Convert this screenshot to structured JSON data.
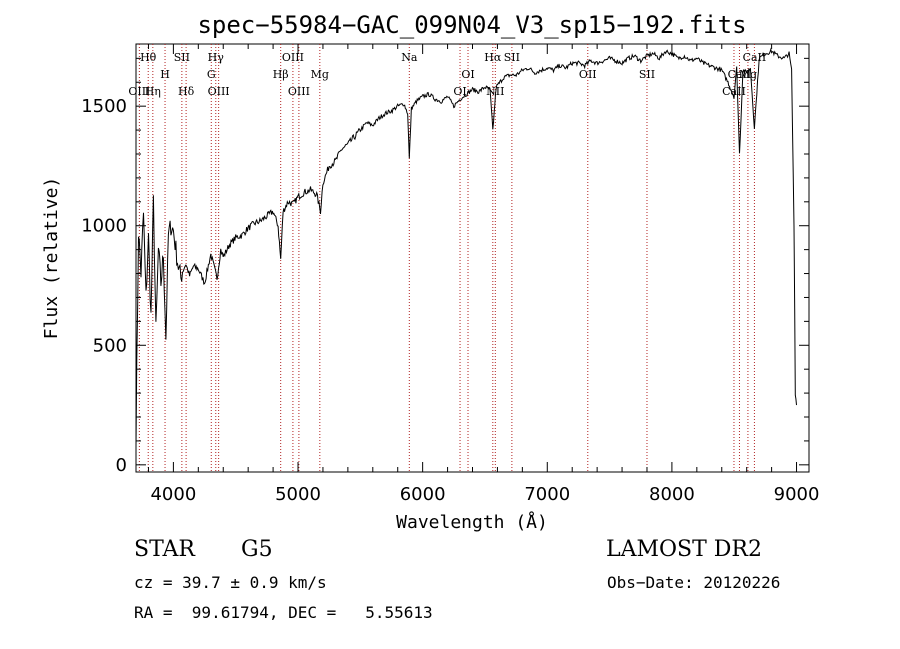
{
  "chart_data": {
    "type": "line",
    "title": "spec−55984−GAC_099N04_V3_sp15−192.fits",
    "xlabel": "Wavelength (Å)",
    "ylabel": "Flux (relative)",
    "xlim": [
      3700,
      9100
    ],
    "ylim": [
      -30,
      1760
    ],
    "xticks": [
      4000,
      5000,
      6000,
      7000,
      8000,
      9000
    ],
    "yticks": [
      0,
      500,
      1000,
      1500
    ],
    "line_color": "#000000",
    "marker_color": "#b22222",
    "series": [
      {
        "x": [
          3700,
          3720,
          3740,
          3760,
          3780,
          3800,
          3820,
          3840,
          3860,
          3880,
          3900,
          3920,
          3940,
          3960,
          3980,
          4000,
          4020,
          4040,
          4060,
          4080,
          4100,
          4130,
          4160,
          4200,
          4250,
          4300,
          4330,
          4350,
          4380,
          4400,
          4450,
          4500,
          4550,
          4600,
          4650,
          4700,
          4750,
          4800,
          4840,
          4861,
          4880,
          4920,
          4960,
          5000,
          5050,
          5100,
          5150,
          5180,
          5200,
          5250,
          5300,
          5350,
          5400,
          5450,
          5500,
          5550,
          5600,
          5650,
          5700,
          5750,
          5800,
          5850,
          5880,
          5893,
          5910,
          5950,
          6000,
          6050,
          6100,
          6150,
          6200,
          6250,
          6300,
          6350,
          6400,
          6450,
          6500,
          6540,
          6563,
          6590,
          6620,
          6650,
          6700,
          6750,
          6800,
          6850,
          6900,
          6950,
          7000,
          7050,
          7100,
          7150,
          7200,
          7250,
          7300,
          7350,
          7400,
          7450,
          7500,
          7550,
          7600,
          7650,
          7700,
          7750,
          7800,
          7850,
          7900,
          7950,
          8000,
          8050,
          8100,
          8150,
          8200,
          8250,
          8300,
          8350,
          8400,
          8450,
          8498,
          8520,
          8542,
          8570,
          8600,
          8630,
          8662,
          8700,
          8750,
          8800,
          8850,
          8900,
          8940,
          8960,
          8980,
          8990,
          9000
        ],
        "y": [
          120,
          980,
          800,
          1050,
          700,
          950,
          620,
          1100,
          560,
          900,
          760,
          880,
          530,
          960,
          1000,
          980,
          900,
          830,
          780,
          830,
          840,
          790,
          830,
          820,
          760,
          880,
          820,
          780,
          900,
          870,
          920,
          950,
          960,
          990,
          1010,
          1020,
          1040,
          1060,
          1000,
          860,
          1060,
          1100,
          1090,
          1120,
          1140,
          1150,
          1130,
          1060,
          1180,
          1250,
          1270,
          1320,
          1340,
          1370,
          1400,
          1430,
          1420,
          1450,
          1470,
          1480,
          1500,
          1510,
          1470,
          1280,
          1490,
          1520,
          1540,
          1550,
          1530,
          1520,
          1540,
          1500,
          1530,
          1550,
          1570,
          1560,
          1580,
          1570,
          1400,
          1580,
          1600,
          1620,
          1630,
          1630,
          1650,
          1660,
          1640,
          1650,
          1660,
          1650,
          1670,
          1660,
          1680,
          1680,
          1670,
          1690,
          1680,
          1690,
          1700,
          1690,
          1680,
          1700,
          1710,
          1690,
          1710,
          1720,
          1700,
          1730,
          1720,
          1700,
          1710,
          1690,
          1700,
          1680,
          1670,
          1660,
          1650,
          1600,
          1540,
          1660,
          1300,
          1650,
          1640,
          1660,
          1410,
          1700,
          1720,
          1730,
          1710,
          1700,
          1720,
          1650,
          1000,
          300,
          250
        ]
      }
    ],
    "lines": [
      {
        "label": "Hθ",
        "wl": 3798,
        "row": 1
      },
      {
        "label": "OIII",
        "wl": 3727,
        "row": 3
      },
      {
        "label": "Hη",
        "wl": 3835,
        "row": 3
      },
      {
        "label": "H",
        "wl": 3933,
        "row": 2
      },
      {
        "label": "SII",
        "wl": 4068,
        "row": 1
      },
      {
        "label": "Hδ",
        "wl": 4102,
        "row": 3
      },
      {
        "label": "Hγ",
        "wl": 4340,
        "row": 1
      },
      {
        "label": "G",
        "wl": 4304,
        "row": 2
      },
      {
        "label": "OIII",
        "wl": 4363,
        "row": 3
      },
      {
        "label": "Hβ",
        "wl": 4861,
        "row": 2
      },
      {
        "label": "OIII",
        "wl": 4959,
        "row": 1
      },
      {
        "label": "OIII",
        "wl": 5007,
        "row": 3
      },
      {
        "label": "Mg",
        "wl": 5175,
        "row": 2
      },
      {
        "label": "Na",
        "wl": 5893,
        "row": 1
      },
      {
        "label": "OI",
        "wl": 6300,
        "row": 3
      },
      {
        "label": "OI",
        "wl": 6364,
        "row": 2
      },
      {
        "label": "Hα",
        "wl": 6563,
        "row": 1
      },
      {
        "label": "NII",
        "wl": 6583,
        "row": 3
      },
      {
        "label": "SII",
        "wl": 6716,
        "row": 1
      },
      {
        "label": "OII",
        "wl": 7325,
        "row": 2
      },
      {
        "label": "SII",
        "wl": 7800,
        "row": 2
      },
      {
        "label": "CaII",
        "wl": 8498,
        "row": 3
      },
      {
        "label": "CaII",
        "wl": 8542,
        "row": 2
      },
      {
        "label": "CaII",
        "wl": 8662,
        "row": 1
      },
      {
        "label": "Mg",
        "wl": 8610,
        "row": 2
      }
    ]
  },
  "info": {
    "class": "STAR",
    "subclass": "G5",
    "survey": "LAMOST DR2",
    "cz": "cz = 39.7 ± 0.9 km/s",
    "obs_date": "Obs−Date: 20120226",
    "radec": "RA =  99.61794, DEC =   5.55613"
  }
}
